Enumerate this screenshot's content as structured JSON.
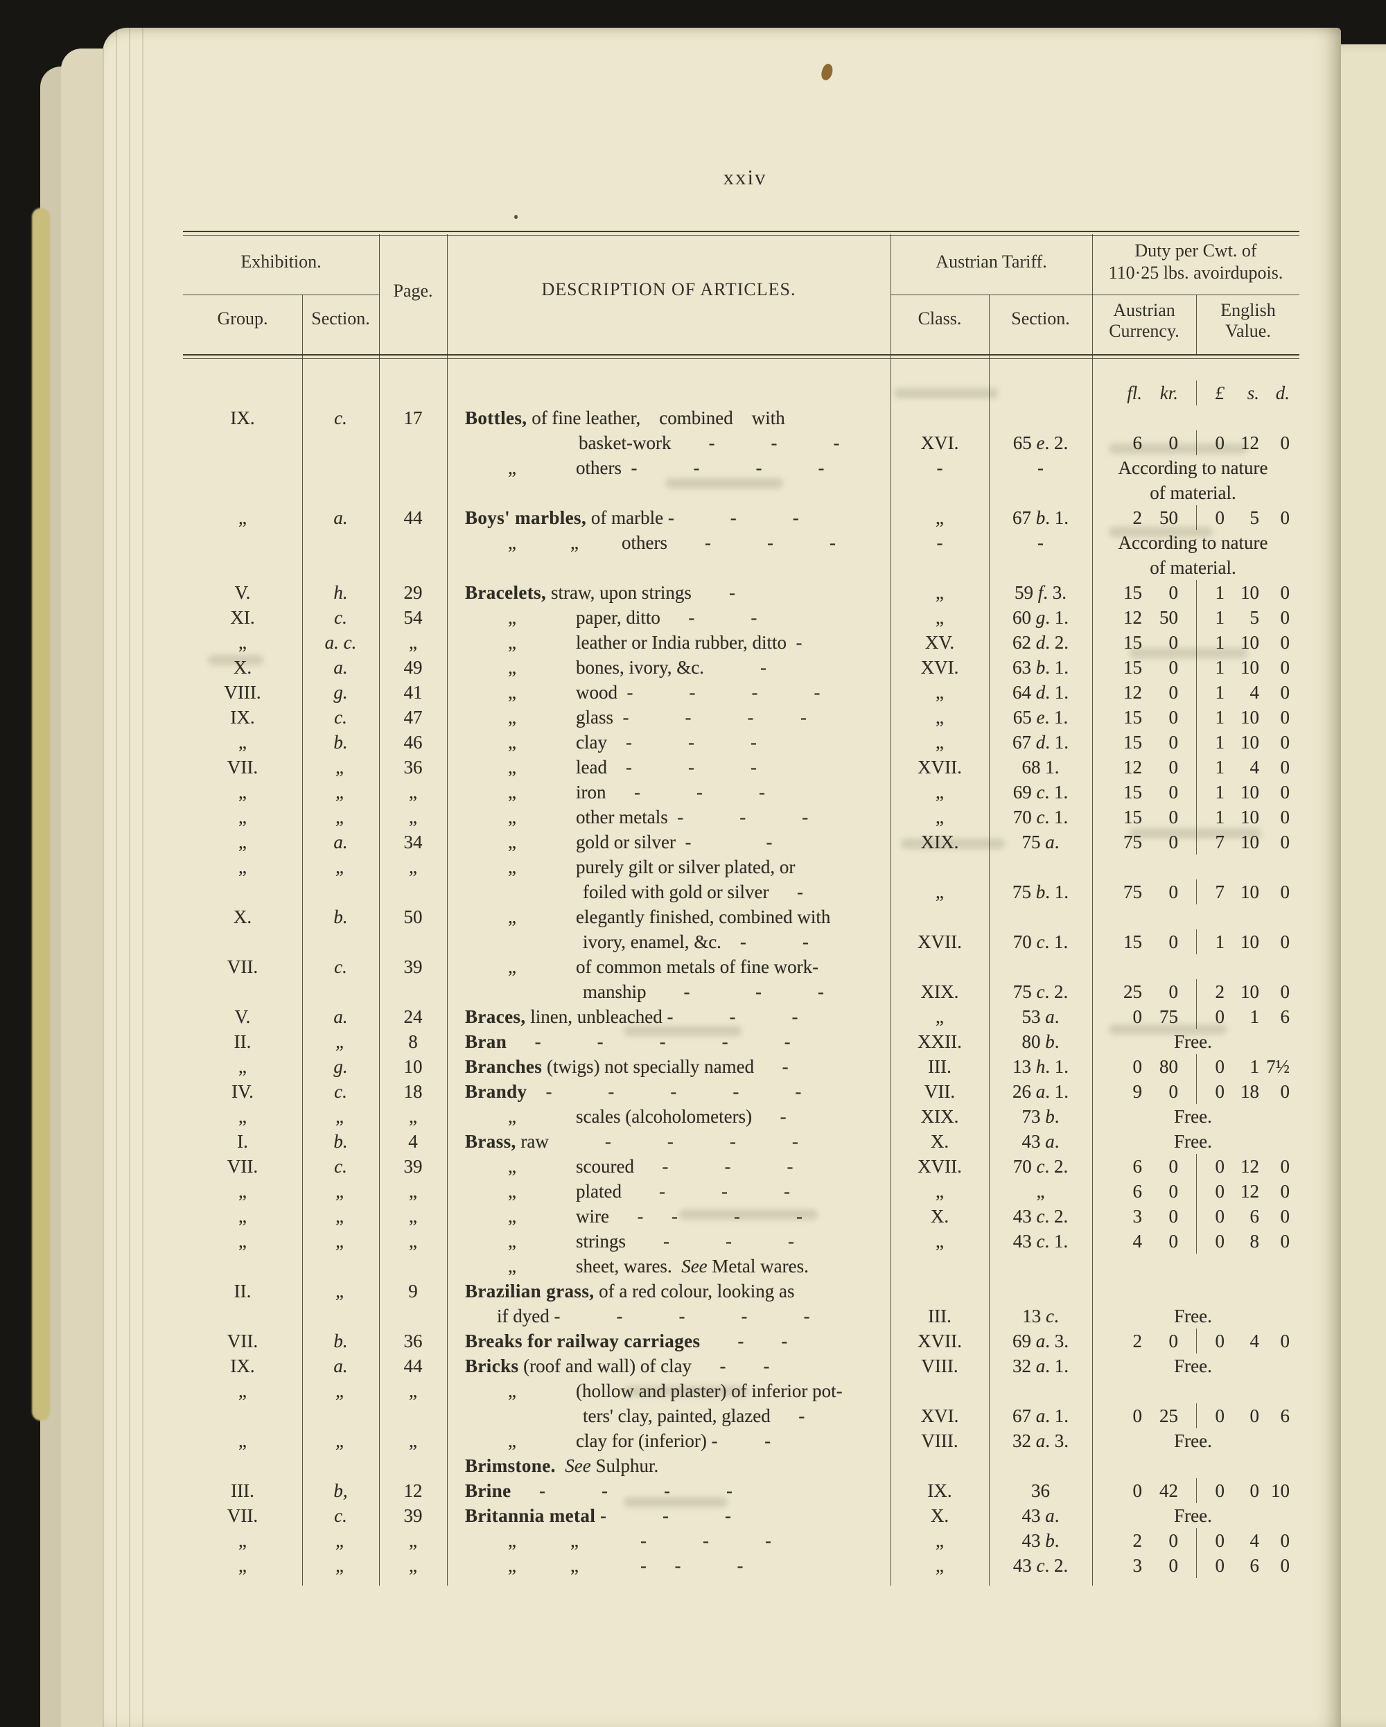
{
  "page_number": "xxiv",
  "colors": {
    "background": "#171613",
    "page": "#ece7ce",
    "page_edges": "#ddd6bb",
    "deckle_edge": "#c9bd7d",
    "ink": "#2f2c26",
    "fleck": "#8f6a33"
  },
  "table": {
    "header": {
      "exhibition": "Exhibition.",
      "group": "Group.",
      "section": "Section.",
      "page": "Page.",
      "description": "DESCRIPTION OF ARTICLES.",
      "austrian_tariff": "Austrian Tariff.",
      "class": "Class.",
      "tariff_section": "Section.",
      "duty_line1": "Duty per Cwt. of",
      "duty_line2": "110·25 lbs. avoirdupois.",
      "austrian_currency": "Austrian Currency.",
      "english_value": "English Value.",
      "units": {
        "fl": "fl.",
        "kr": "kr.",
        "pound": "£",
        "s": "s.",
        "d": "d."
      }
    },
    "rows": [
      {
        "g": "IX.",
        "s": "c.",
        "p": "17",
        "b": "Bottles,",
        "t": " of fine leather, combined with",
        "ind": "m"
      },
      {
        "t": "basket-work  -   -   -",
        "ind": "c1",
        "cls": "XVI.",
        "ts": "65 e. 2.",
        "fl": "6",
        "kr": "0",
        "L": "0",
        "sh": "12",
        "d": "0"
      },
      {
        "q": "„",
        "t": "others -   -   -   -",
        "ind": "d1",
        "cls": "-",
        "ts": "-",
        "span": "According to nature"
      },
      {
        "span": "of material.",
        "ind": "m"
      },
      {
        "g": "„",
        "s": "a.",
        "p": "44",
        "b": "Boys' marbles,",
        "t": " of marble -   -   -",
        "ind": "m",
        "cls": "„",
        "ts": "67 b. 1.",
        "fl": "2",
        "kr": "50",
        "L": "0",
        "sh": "5",
        "d": "0"
      },
      {
        "q": "„",
        "q2": "„",
        "t": "others  -   -   -",
        "ind": "d2",
        "cls": "-",
        "ts": "-",
        "span": "According to nature"
      },
      {
        "span": "of material.",
        "ind": "m"
      },
      {
        "g": "V.",
        "s": "h.",
        "p": "29",
        "b": "Bracelets,",
        "t": " straw, upon strings  -",
        "ind": "m",
        "cls": "„",
        "ts": "59 f. 3.",
        "fl": "15",
        "kr": "0",
        "L": "1",
        "sh": "10",
        "d": "0"
      },
      {
        "g": "XI.",
        "s": "c.",
        "p": "54",
        "q": "„",
        "t": "paper, ditto  -   -",
        "ind": "d1",
        "cls": "„",
        "ts": "60 g. 1.",
        "fl": "12",
        "kr": "50",
        "L": "1",
        "sh": "5",
        "d": "0"
      },
      {
        "g": "„",
        "s": "a. c.",
        "p": "„",
        "q": "„",
        "t": "leather or India rubber, ditto -",
        "ind": "d1",
        "cls": "XV.",
        "ts": "62 d. 2.",
        "fl": "15",
        "kr": "0",
        "L": "1",
        "sh": "10",
        "d": "0"
      },
      {
        "g": "X.",
        "s": "a.",
        "p": "49",
        "q": "„",
        "t": "bones, ivory, &c.   -",
        "ind": "d1",
        "cls": "XVI.",
        "ts": "63 b. 1.",
        "fl": "15",
        "kr": "0",
        "L": "1",
        "sh": "10",
        "d": "0"
      },
      {
        "g": "VIII.",
        "s": "g.",
        "p": "41",
        "q": "„",
        "t": "wood -   -   -   -",
        "ind": "d1",
        "cls": "„",
        "ts": "64 d. 1.",
        "fl": "12",
        "kr": "0",
        "L": "1",
        "sh": "4",
        "d": "0"
      },
      {
        "g": "IX.",
        "s": "c.",
        "p": "47",
        "q": "„",
        "t": "glass -   -   -   -",
        "ind": "d1",
        "cls": "„",
        "ts": "65 e. 1.",
        "fl": "15",
        "kr": "0",
        "L": "1",
        "sh": "10",
        "d": "0"
      },
      {
        "g": "„",
        "s": "b.",
        "p": "46",
        "q": "„",
        "t": "clay -   -   -",
        "ind": "d1",
        "cls": "„",
        "ts": "67 d. 1.",
        "fl": "15",
        "kr": "0",
        "L": "1",
        "sh": "10",
        "d": "0"
      },
      {
        "g": "VII.",
        "s": "„",
        "p": "36",
        "q": "„",
        "t": "lead -   -   -",
        "ind": "d1",
        "cls": "XVII.",
        "ts": "68 1.",
        "fl": "12",
        "kr": "0",
        "L": "1",
        "sh": "4",
        "d": "0"
      },
      {
        "g": "„",
        "s": "„",
        "p": "„",
        "q": "„",
        "t": "iron  -   -   -",
        "ind": "d1",
        "cls": "„",
        "ts": "69 c. 1.",
        "fl": "15",
        "kr": "0",
        "L": "1",
        "sh": "10",
        "d": "0"
      },
      {
        "g": "„",
        "s": "„",
        "p": "„",
        "q": "„",
        "t": "other metals -   -   -",
        "ind": "d1",
        "cls": "„",
        "ts": "70 c. 1.",
        "fl": "15",
        "kr": "0",
        "L": "1",
        "sh": "10",
        "d": "0"
      },
      {
        "g": "„",
        "s": "a.",
        "p": "34",
        "q": "„",
        "t": "gold or silver -    -",
        "ind": "d1",
        "cls": "XIX.",
        "ts": "75 a.",
        "fl": "75",
        "kr": "0",
        "L": "7",
        "sh": "10",
        "d": "0"
      },
      {
        "g": "„",
        "s": "„",
        "p": "„",
        "q": "„",
        "t": "purely gilt or silver plated, or",
        "ind": "d1"
      },
      {
        "t": "foiled with gold or silver  -",
        "ind": "c2",
        "cls": "„",
        "ts": "75 b. 1.",
        "fl": "75",
        "kr": "0",
        "L": "7",
        "sh": "10",
        "d": "0"
      },
      {
        "g": "X.",
        "s": "b.",
        "p": "50",
        "q": "„",
        "t": "elegantly finished, combined with",
        "ind": "d1"
      },
      {
        "t": "ivory, enamel, &c. -   -",
        "ind": "c2",
        "cls": "XVII.",
        "ts": "70 c. 1.",
        "fl": "15",
        "kr": "0",
        "L": "1",
        "sh": "10",
        "d": "0"
      },
      {
        "g": "VII.",
        "s": "c.",
        "p": "39",
        "q": "„",
        "t": "of common metals of fine work-",
        "ind": "d1"
      },
      {
        "t": "manship  -    -   -",
        "ind": "c2",
        "cls": "XIX.",
        "ts": "75 c. 2.",
        "fl": "25",
        "kr": "0",
        "L": "2",
        "sh": "10",
        "d": "0"
      },
      {
        "g": "V.",
        "s": "a.",
        "p": "24",
        "b": "Braces,",
        "t": " linen, unbleached -   -   -",
        "ind": "m",
        "cls": "„",
        "ts": "53 a.",
        "fl": "0",
        "kr": "75",
        "L": "0",
        "sh": "1",
        "d": "6"
      },
      {
        "g": "II.",
        "s": "„",
        "p": "8",
        "b": "Bran",
        "t": "  -   -   -   -   -",
        "ind": "m",
        "cls": "XXII.",
        "ts": "80 b.",
        "span": "Free."
      },
      {
        "g": "„",
        "s": "g.",
        "p": "10",
        "b": "Branches",
        "t": " (twigs) not specially named  -",
        "ind": "m",
        "cls": "III.",
        "ts": "13 h. 1.",
        "fl": "0",
        "kr": "80",
        "L": "0",
        "sh": "1",
        "d": "7½"
      },
      {
        "g": "IV.",
        "s": "c.",
        "p": "18",
        "b": "Brandy",
        "t": " -   -   -   -   -",
        "ind": "m",
        "cls": "VII.",
        "ts": "26 a. 1.",
        "fl": "9",
        "kr": "0",
        "L": "0",
        "sh": "18",
        "d": "0"
      },
      {
        "g": "„",
        "s": "„",
        "p": "„",
        "q": "„",
        "t": "scales (alcoholometers)  -",
        "ind": "d1",
        "cls": "XIX.",
        "ts": "73 b.",
        "span": "Free."
      },
      {
        "g": "I.",
        "s": "b.",
        "p": "4",
        "b": "Brass,",
        "t": " raw   -   -   -   -",
        "ind": "m",
        "cls": "X.",
        "ts": "43 a.",
        "span": "Free."
      },
      {
        "g": "VII.",
        "s": "c.",
        "p": "39",
        "q": "„",
        "t": "scoured  -   -   -",
        "ind": "d1",
        "cls": "XVII.",
        "ts": "70 c. 2.",
        "fl": "6",
        "kr": "0",
        "L": "0",
        "sh": "12",
        "d": "0"
      },
      {
        "g": "„",
        "s": "„",
        "p": "„",
        "q": "„",
        "t": "plated  -   -   -",
        "ind": "d1",
        "cls": "„",
        "ts": "„",
        "fl": "6",
        "kr": "0",
        "L": "0",
        "sh": "12",
        "d": "0"
      },
      {
        "g": "„",
        "s": "„",
        "p": "„",
        "q": "„",
        "t": "wire  -  -   -   -",
        "ind": "d1",
        "cls": "X.",
        "ts": "43 c. 2.",
        "fl": "3",
        "kr": "0",
        "L": "0",
        "sh": "6",
        "d": "0"
      },
      {
        "g": "„",
        "s": "„",
        "p": "„",
        "q": "„",
        "t": "strings  -   -   -",
        "ind": "d1",
        "cls": "„",
        "ts": "43 c. 1.",
        "fl": "4",
        "kr": "0",
        "L": "0",
        "sh": "8",
        "d": "0"
      },
      {
        "q": "„",
        "t": "sheet, wares. ",
        "i": "See",
        "t2": " Metal wares.",
        "ind": "d1"
      },
      {
        "g": "II.",
        "s": "„",
        "p": "9",
        "b": "Brazilian grass,",
        "t": " of a red colour, looking as",
        "ind": "m"
      },
      {
        "t": "if dyed -   -   -   -   -",
        "ind": "c3",
        "cls": "III.",
        "ts": "13 c.",
        "span": "Free."
      },
      {
        "g": "VII.",
        "s": "b.",
        "p": "36",
        "b": "Breaks for railway carriages",
        "t": "  -  -",
        "ind": "m",
        "cls": "XVII.",
        "ts": "69 a. 3.",
        "fl": "2",
        "kr": "0",
        "L": "0",
        "sh": "4",
        "d": "0"
      },
      {
        "g": "IX.",
        "s": "a.",
        "p": "44",
        "b": "Bricks",
        "t": " (roof and wall) of clay  -  -",
        "ind": "m",
        "cls": "VIII.",
        "ts": "32 a. 1.",
        "span": "Free."
      },
      {
        "g": "„",
        "s": "„",
        "p": "„",
        "q": "„",
        "t": "(hollow and plaster) of inferior pot-",
        "ind": "d1"
      },
      {
        "t": "ters' clay, painted, glazed  -",
        "ind": "c2",
        "cls": "XVI.",
        "ts": "67 a. 1.",
        "fl": "0",
        "kr": "25",
        "L": "0",
        "sh": "0",
        "d": "6"
      },
      {
        "g": "„",
        "s": "„",
        "p": "„",
        "q": "„",
        "t": "clay for (inferior) -   -",
        "ind": "d1",
        "cls": "VIII.",
        "ts": "32 a. 3.",
        "span": "Free."
      },
      {
        "b": "Brimstone.",
        "t": " ",
        "i": "See",
        "t2": " Sulphur.",
        "ind": "m"
      },
      {
        "g": "III.",
        "s": "b,",
        "p": "12",
        "b": "Brine",
        "t": "  -   -   -   -",
        "ind": "m",
        "cls": "IX.",
        "ts": "36",
        "fl": "0",
        "kr": "42",
        "L": "0",
        "sh": "0",
        "d": "10"
      },
      {
        "g": "VII.",
        "s": "c.",
        "p": "39",
        "b": "Britannia metal",
        "t": " -   -   -",
        "ind": "m",
        "cls": "X.",
        "ts": "43 a.",
        "span": "Free."
      },
      {
        "g": "„",
        "s": "„",
        "p": "„",
        "q": "„",
        "q2": "„",
        "t": " -   -   -",
        "ind": "d2",
        "cls": "„",
        "ts": "43 b.",
        "fl": "2",
        "kr": "0",
        "L": "0",
        "sh": "4",
        "d": "0"
      },
      {
        "g": "„",
        "s": "„",
        "p": "„",
        "q": "„",
        "q2": "„",
        "t": " -  -   -",
        "ind": "d2",
        "cls": "„",
        "ts": "43 c. 2.",
        "fl": "3",
        "kr": "0",
        "L": "0",
        "sh": "6",
        "d": "0"
      }
    ]
  }
}
